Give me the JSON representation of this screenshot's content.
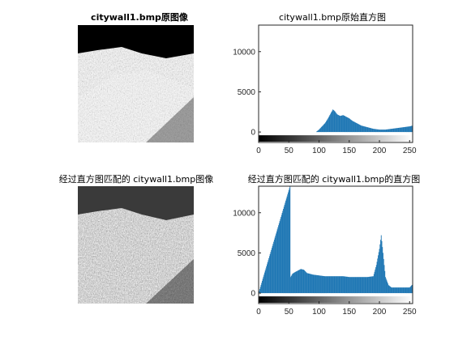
{
  "figure": {
    "panels": [
      {
        "id": "original-image",
        "title": "citywall1.bmp原图像"
      },
      {
        "id": "matched-image",
        "title": "经过直方图匹配的 citywall1.bmp图像"
      }
    ]
  },
  "chart_data": [
    {
      "type": "bar",
      "title": "citywall1.bmp原始直方图",
      "xlabel": "",
      "ylabel": "",
      "xlim": [
        0,
        255
      ],
      "ylim": [
        -1300,
        13300
      ],
      "xticks": [
        0,
        50,
        100,
        150,
        200,
        250
      ],
      "yticks": [
        0,
        5000,
        10000
      ],
      "grid": false,
      "colorbar": "grayscale 0-255 below axis",
      "bar_color": "#1f77b4",
      "bins_x": [
        0,
        95,
        100,
        105,
        110,
        115,
        120,
        123,
        126,
        130,
        135,
        140,
        145,
        150,
        155,
        160,
        165,
        170,
        180,
        190,
        200,
        210,
        220,
        230,
        240,
        250,
        255
      ],
      "bins_y": [
        0,
        0,
        300,
        700,
        1100,
        1700,
        2400,
        2800,
        2600,
        2200,
        2000,
        2100,
        1900,
        1700,
        1400,
        1200,
        1000,
        800,
        600,
        400,
        300,
        300,
        400,
        500,
        600,
        700,
        800
      ]
    },
    {
      "type": "bar",
      "title": "经过直方图匹配的 citywall1.bmp的直方图",
      "xlabel": "",
      "ylabel": "",
      "xlim": [
        0,
        255
      ],
      "ylim": [
        -1300,
        13300
      ],
      "xticks": [
        0,
        50,
        100,
        150,
        200,
        250
      ],
      "yticks": [
        0,
        5000,
        10000
      ],
      "grid": false,
      "colorbar": "grayscale 0-255 below axis",
      "bar_color": "#1f77b4",
      "bins_x": [
        0,
        52,
        53,
        56,
        60,
        65,
        70,
        75,
        80,
        90,
        100,
        110,
        120,
        130,
        140,
        150,
        160,
        170,
        180,
        190,
        195,
        200,
        203,
        206,
        210,
        215,
        220,
        230,
        240,
        250,
        255
      ],
      "bins_y": [
        0,
        13300,
        2000,
        2400,
        2600,
        2800,
        3000,
        2900,
        2500,
        2300,
        2200,
        2100,
        2100,
        2100,
        2100,
        2000,
        2000,
        2000,
        2000,
        2100,
        3500,
        5500,
        7200,
        5000,
        2000,
        1000,
        700,
        700,
        700,
        700,
        1100
      ]
    }
  ]
}
